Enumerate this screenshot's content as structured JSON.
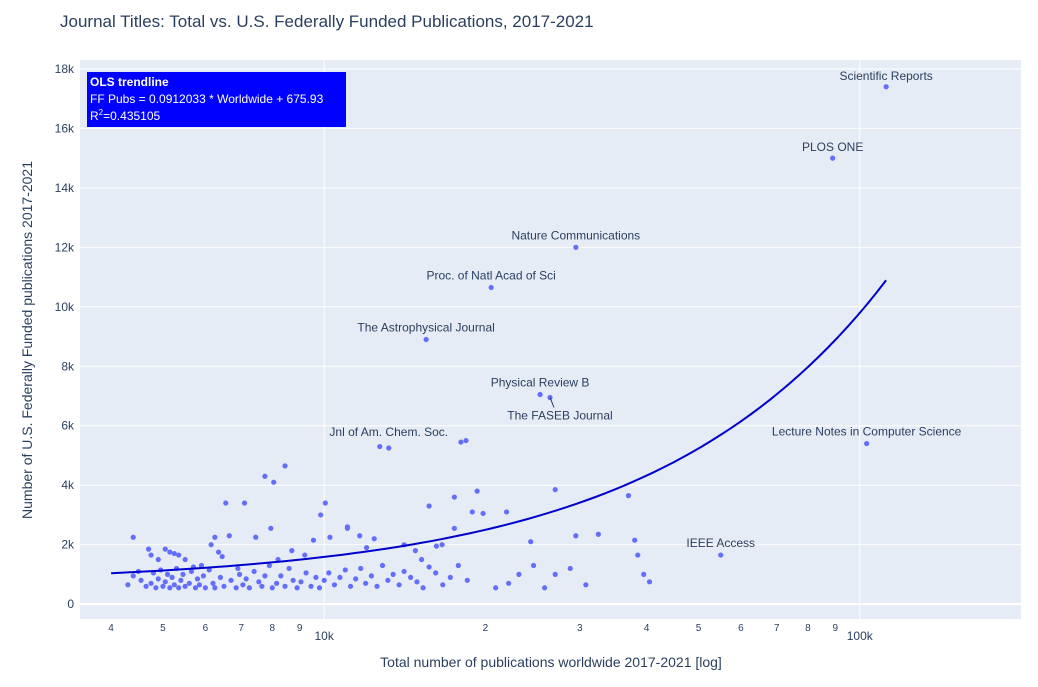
{
  "chart_data": {
    "type": "scatter",
    "title": "Journal Titles: Total vs. U.S. Federally Funded Publications, 2017-2021",
    "xlabel": "Total number of publications worldwide 2017-2021 [log]",
    "ylabel": "Number of U.S. Federally Funded publications 2017-2021",
    "xscale": "log",
    "xlim": [
      3500,
      200000
    ],
    "ylim": [
      -500,
      18300
    ],
    "grid": true,
    "marker_color": "#636efa",
    "trend_color": "#0000cc",
    "x_major_ticks": [
      {
        "value": 10000,
        "label": "10k"
      },
      {
        "value": 100000,
        "label": "100k"
      }
    ],
    "x_minor_ticks": [
      {
        "value": 4000,
        "label": "4"
      },
      {
        "value": 5000,
        "label": "5"
      },
      {
        "value": 6000,
        "label": "6"
      },
      {
        "value": 7000,
        "label": "7"
      },
      {
        "value": 8000,
        "label": "8"
      },
      {
        "value": 9000,
        "label": "9"
      },
      {
        "value": 20000,
        "label": "2"
      },
      {
        "value": 30000,
        "label": "3"
      },
      {
        "value": 40000,
        "label": "4"
      },
      {
        "value": 50000,
        "label": "5"
      },
      {
        "value": 60000,
        "label": "6"
      },
      {
        "value": 70000,
        "label": "7"
      },
      {
        "value": 80000,
        "label": "8"
      },
      {
        "value": 90000,
        "label": "9"
      }
    ],
    "y_ticks": [
      {
        "value": 0,
        "label": "0"
      },
      {
        "value": 2000,
        "label": "2k"
      },
      {
        "value": 4000,
        "label": "4k"
      },
      {
        "value": 6000,
        "label": "6k"
      },
      {
        "value": 8000,
        "label": "8k"
      },
      {
        "value": 10000,
        "label": "10k"
      },
      {
        "value": 12000,
        "label": "12k"
      },
      {
        "value": 14000,
        "label": "14k"
      },
      {
        "value": 16000,
        "label": "16k"
      },
      {
        "value": 18000,
        "label": "18k"
      }
    ],
    "trendline": {
      "label": "OLS trendline",
      "equation": "FF Pubs = 0.0912033 * Worldwide + 675.93",
      "r2_prefix": "R",
      "r2_sup": "2",
      "r2_value": "=0.435105",
      "x_range": [
        4000,
        112000
      ],
      "slope": 0.0912033,
      "intercept": 675.93
    },
    "labeled_points": [
      {
        "label": "Scientific Reports",
        "x": 112000,
        "y": 17400
      },
      {
        "label": "PLOS ONE",
        "x": 89000,
        "y": 15000
      },
      {
        "label": "Nature Communications",
        "x": 29500,
        "y": 12000
      },
      {
        "label": "Proc. of Natl Acad of Sci",
        "x": 20500,
        "y": 10650
      },
      {
        "label": "The Astrophysical Journal",
        "x": 15500,
        "y": 8900
      },
      {
        "label": "Physical Review B",
        "x": 25300,
        "y": 7050
      },
      {
        "label": "The FASEB Journal",
        "x": 26400,
        "y": 6950
      },
      {
        "label": "Jnl of Am. Chem. Soc.",
        "x": 13200,
        "y": 5250
      },
      {
        "label": "Lecture Notes in Computer Science",
        "x": 103000,
        "y": 5400
      },
      {
        "label": "IEEE Access",
        "x": 55000,
        "y": 1650
      }
    ],
    "points": [
      [
        4400,
        2250
      ],
      [
        4700,
        1850
      ],
      [
        4750,
        1650
      ],
      [
        4900,
        1500
      ],
      [
        5050,
        1850
      ],
      [
        5150,
        1750
      ],
      [
        5250,
        1700
      ],
      [
        5350,
        1650
      ],
      [
        5500,
        1500
      ],
      [
        5700,
        1250
      ],
      [
        5900,
        1300
      ],
      [
        6150,
        2000
      ],
      [
        6250,
        2250
      ],
      [
        6350,
        1750
      ],
      [
        6450,
        1600
      ],
      [
        6550,
        3400
      ],
      [
        6650,
        2300
      ],
      [
        6900,
        1200
      ],
      [
        7100,
        3400
      ],
      [
        7450,
        2250
      ],
      [
        7750,
        4300
      ],
      [
        8050,
        4100
      ],
      [
        8450,
        4650
      ],
      [
        7950,
        2550
      ],
      [
        8200,
        1500
      ],
      [
        8700,
        1800
      ],
      [
        9200,
        1650
      ],
      [
        9550,
        2150
      ],
      [
        9850,
        3000
      ],
      [
        10050,
        3400
      ],
      [
        10250,
        2250
      ],
      [
        11050,
        2600
      ],
      [
        11050,
        2550
      ],
      [
        11650,
        2300
      ],
      [
        12000,
        1900
      ],
      [
        12400,
        2200
      ],
      [
        12700,
        5300
      ],
      [
        14100,
        2000
      ],
      [
        14800,
        1800
      ],
      [
        15200,
        1500
      ],
      [
        15700,
        3300
      ],
      [
        16200,
        1950
      ],
      [
        16600,
        2000
      ],
      [
        17500,
        2550
      ],
      [
        17500,
        3600
      ],
      [
        18000,
        5450
      ],
      [
        18400,
        5500
      ],
      [
        18900,
        3100
      ],
      [
        19300,
        3800
      ],
      [
        19800,
        3050
      ],
      [
        21900,
        3100
      ],
      [
        24300,
        2100
      ],
      [
        27000,
        3850
      ],
      [
        29500,
        2300
      ],
      [
        32500,
        2350
      ],
      [
        37000,
        3650
      ],
      [
        38000,
        2150
      ],
      [
        38500,
        1650
      ],
      [
        39500,
        1000
      ],
      [
        40500,
        750
      ],
      [
        4300,
        650
      ],
      [
        4400,
        950
      ],
      [
        4500,
        1100
      ],
      [
        4550,
        800
      ],
      [
        4650,
        600
      ],
      [
        4750,
        700
      ],
      [
        4800,
        1050
      ],
      [
        4850,
        550
      ],
      [
        4900,
        850
      ],
      [
        4950,
        1150
      ],
      [
        5000,
        600
      ],
      [
        5050,
        750
      ],
      [
        5100,
        1000
      ],
      [
        5150,
        550
      ],
      [
        5200,
        900
      ],
      [
        5250,
        650
      ],
      [
        5300,
        1200
      ],
      [
        5350,
        550
      ],
      [
        5400,
        800
      ],
      [
        5450,
        1000
      ],
      [
        5500,
        600
      ],
      [
        5600,
        700
      ],
      [
        5650,
        1100
      ],
      [
        5750,
        550
      ],
      [
        5800,
        850
      ],
      [
        5850,
        650
      ],
      [
        5950,
        950
      ],
      [
        6000,
        550
      ],
      [
        6100,
        1150
      ],
      [
        6200,
        700
      ],
      [
        6250,
        550
      ],
      [
        6400,
        900
      ],
      [
        6500,
        600
      ],
      [
        6700,
        800
      ],
      [
        6850,
        550
      ],
      [
        6950,
        1000
      ],
      [
        7050,
        650
      ],
      [
        7150,
        850
      ],
      [
        7250,
        550
      ],
      [
        7400,
        1100
      ],
      [
        7550,
        750
      ],
      [
        7650,
        600
      ],
      [
        7750,
        950
      ],
      [
        7900,
        1300
      ],
      [
        8000,
        550
      ],
      [
        8150,
        700
      ],
      [
        8300,
        950
      ],
      [
        8450,
        600
      ],
      [
        8600,
        1200
      ],
      [
        8750,
        800
      ],
      [
        8900,
        550
      ],
      [
        9050,
        750
      ],
      [
        9250,
        1050
      ],
      [
        9450,
        600
      ],
      [
        9650,
        900
      ],
      [
        9800,
        550
      ],
      [
        10000,
        800
      ],
      [
        10200,
        1050
      ],
      [
        10450,
        650
      ],
      [
        10700,
        900
      ],
      [
        10950,
        1150
      ],
      [
        11200,
        600
      ],
      [
        11450,
        850
      ],
      [
        11700,
        1200
      ],
      [
        11950,
        700
      ],
      [
        12250,
        950
      ],
      [
        12550,
        600
      ],
      [
        12850,
        1300
      ],
      [
        13150,
        800
      ],
      [
        13450,
        1000
      ],
      [
        13800,
        650
      ],
      [
        14100,
        1100
      ],
      [
        14500,
        900
      ],
      [
        14900,
        750
      ],
      [
        15300,
        550
      ],
      [
        15700,
        1250
      ],
      [
        16150,
        1050
      ],
      [
        16650,
        650
      ],
      [
        17200,
        900
      ],
      [
        17800,
        1300
      ],
      [
        18500,
        800
      ],
      [
        20900,
        550
      ],
      [
        22100,
        700
      ],
      [
        23100,
        1000
      ],
      [
        24600,
        1300
      ],
      [
        25800,
        550
      ],
      [
        27000,
        1000
      ],
      [
        28800,
        1200
      ],
      [
        30800,
        650
      ]
    ]
  }
}
